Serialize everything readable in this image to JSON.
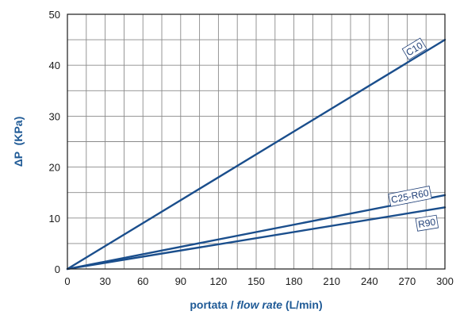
{
  "chart_data": {
    "type": "line",
    "title": "",
    "xlabel_parts": [
      {
        "text": "portata / ",
        "italic": false
      },
      {
        "text": "flow rate",
        "italic": true
      },
      {
        "text": " (L/min)",
        "italic": false
      }
    ],
    "ylabel": "ΔP  (KPa)",
    "xlim": [
      0,
      300
    ],
    "ylim": [
      0,
      50
    ],
    "x_ticks": [
      0,
      30,
      60,
      90,
      120,
      150,
      180,
      210,
      240,
      270,
      300
    ],
    "y_ticks": [
      0,
      10,
      20,
      30,
      40,
      50
    ],
    "x_minor_step": 15,
    "y_minor_step": 5,
    "grid": true,
    "line_color": "#1a4e8c",
    "label_color": "#1f5a96",
    "series": [
      {
        "name": "C10",
        "x": [
          0,
          300
        ],
        "y": [
          0,
          45
        ]
      },
      {
        "name": "C25-R60",
        "x": [
          0,
          300
        ],
        "y": [
          0,
          14.5
        ]
      },
      {
        "name": "R90",
        "x": [
          0,
          300
        ],
        "y": [
          0,
          12.1
        ]
      }
    ]
  }
}
